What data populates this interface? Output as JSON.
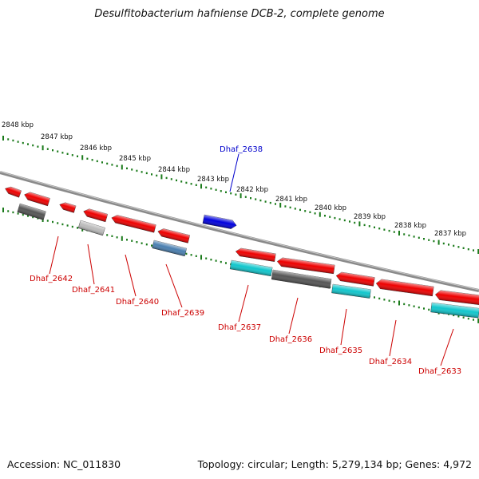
{
  "title": "Desulfitobacterium hafniense DCB-2, complete genome",
  "footer": {
    "accession": "Accession: NC_011830",
    "summary": "Topology: circular; Length: 5,279,134 bp; Genes: 4,972"
  },
  "colors": {
    "backbone": "#7a7a7a",
    "ruler": "#1a7a1a",
    "label_red": "#cc0000",
    "label_blue": "#0000cc",
    "red": "#ee0000",
    "blue": "#0000dd",
    "gray": "#555555",
    "lightgray": "#bbbbbb",
    "cyan": "#11c6cc",
    "steel": "#4a7fb0"
  },
  "ruler": {
    "labels": [
      "2848 kbp",
      "2847 kbp",
      "2846 kbp",
      "2845 kbp",
      "2844 kbp",
      "2843 kbp",
      "2842 kbp",
      "2841 kbp",
      "2840 kbp",
      "2839 kbp",
      "2838 kbp",
      "2837 kbp"
    ]
  },
  "genes": [
    {
      "label": "",
      "color": "red",
      "row": "upper"
    },
    {
      "label": "",
      "color": "red",
      "row": "upper"
    },
    {
      "label": "",
      "color": "gray",
      "row": "lower"
    },
    {
      "label": "",
      "color": "red",
      "row": "upper"
    },
    {
      "label": "",
      "color": "red",
      "row": "upper"
    },
    {
      "label": "",
      "color": "lightgray",
      "row": "lower"
    },
    {
      "label": "",
      "color": "red",
      "row": "upper"
    },
    {
      "label": "",
      "color": "red",
      "row": "upper"
    },
    {
      "label": "",
      "color": "steel",
      "row": "lower"
    },
    {
      "label": "",
      "color": "blue",
      "row": "outer"
    },
    {
      "label": "",
      "color": "red",
      "row": "upper"
    },
    {
      "label": "",
      "color": "cyan",
      "row": "lower"
    },
    {
      "label": "",
      "color": "red",
      "row": "upper"
    },
    {
      "label": "",
      "color": "gray",
      "row": "lower"
    },
    {
      "label": "",
      "color": "red",
      "row": "upper"
    },
    {
      "label": "",
      "color": "cyan",
      "row": "lower"
    },
    {
      "label": "",
      "color": "red",
      "row": "upper"
    },
    {
      "label": "",
      "color": "red",
      "row": "upper"
    },
    {
      "label": "",
      "color": "cyan",
      "row": "lower"
    }
  ],
  "gene_labels": [
    {
      "text": "Dhaf_2638",
      "color": "label_blue"
    },
    {
      "text": "Dhaf_2642",
      "color": "label_red"
    },
    {
      "text": "Dhaf_2641",
      "color": "label_red"
    },
    {
      "text": "Dhaf_2640",
      "color": "label_red"
    },
    {
      "text": "Dhaf_2639",
      "color": "label_red"
    },
    {
      "text": "Dhaf_2637",
      "color": "label_red"
    },
    {
      "text": "Dhaf_2636",
      "color": "label_red"
    },
    {
      "text": "Dhaf_2635",
      "color": "label_red"
    },
    {
      "text": "Dhaf_2634",
      "color": "label_red"
    },
    {
      "text": "Dhaf_2633",
      "color": "label_red"
    }
  ]
}
